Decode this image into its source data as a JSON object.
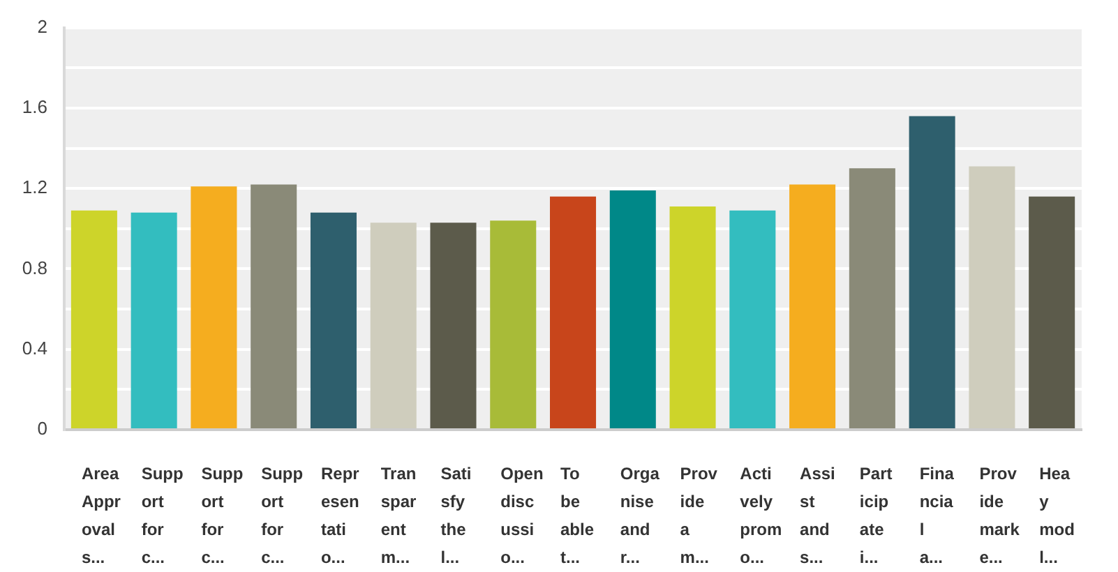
{
  "chart_data": {
    "type": "bar",
    "categories": [
      "Area Approvals...",
      "Support for c...",
      "Support for c...",
      "Support for c...",
      "Representatio...",
      "Transparent m...",
      "Satisfy the l...",
      "Open discussio...",
      "To be able t...",
      "Organise and r...",
      "Provide a m...",
      "Actively promo...",
      "Assist and s...",
      "Participate i...",
      "Financial a...",
      "Provide marke...",
      "Hea y mod l..."
    ],
    "values": [
      1.09,
      1.08,
      1.21,
      1.22,
      1.08,
      1.03,
      1.03,
      1.04,
      1.16,
      1.19,
      1.11,
      1.09,
      1.22,
      1.3,
      1.56,
      1.31,
      1.16
    ],
    "colors": [
      "#cdd42a",
      "#33bdbf",
      "#f5ad1f",
      "#8a8a78",
      "#2e5f6d",
      "#cfcdbd",
      "#5c5b4b",
      "#a8bb38",
      "#c8451b",
      "#008888",
      "#cdd42a",
      "#33bdbf",
      "#f5ad1f",
      "#8a8a78",
      "#2e5f6d",
      "#cfcdbd",
      "#5c5b4b"
    ],
    "ylim": [
      0,
      2
    ],
    "yticks": [
      0,
      {
        "value": 0.2,
        "label": null
      },
      0.4,
      {
        "value": 0.6,
        "label": null
      },
      0.8,
      {
        "value": 1,
        "label": null
      },
      1.2,
      {
        "value": 1.4,
        "label": null
      },
      1.6,
      {
        "value": 1.8,
        "label": null
      },
      2
    ],
    "grid": "y"
  }
}
